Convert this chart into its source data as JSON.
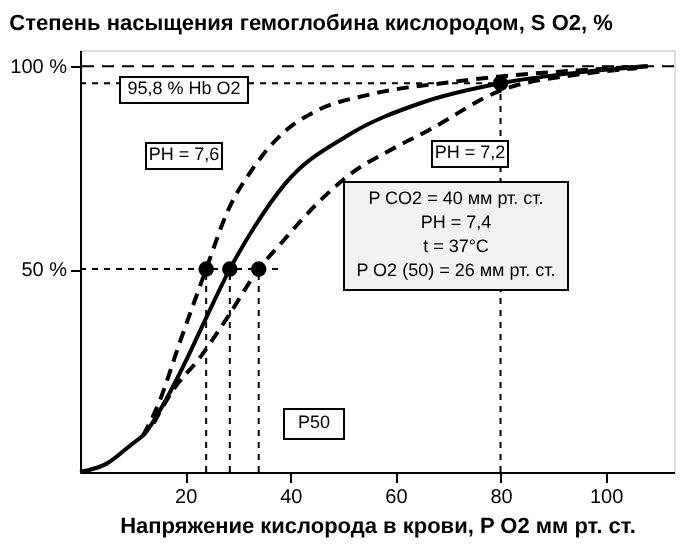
{
  "chart_data": {
    "type": "line",
    "title": "Степень насыщения гемоглобина кислородом, S O2, %",
    "xlabel": "Напряжение кислорода в крови, P O2  мм рт. ст.",
    "xlim": [
      0,
      113
    ],
    "ylim": [
      0,
      104
    ],
    "xticks": [
      20,
      40,
      60,
      80,
      100
    ],
    "yticks": [
      {
        "value": 50,
        "label": "50 %"
      },
      {
        "value": 100,
        "label": "100 %"
      }
    ],
    "grid": false,
    "series": [
      {
        "color": "#000000",
        "line_style": "dashed",
        "x": [
          12,
          15,
          19,
          24,
          28,
          33,
          39,
          45,
          55,
          70,
          80,
          95,
          108
        ],
        "values": [
          9,
          17,
          32,
          50,
          64,
          75,
          84,
          89,
          93,
          96,
          97.5,
          99,
          100
        ]
      },
      {
        "color": "#000000",
        "line_style": "solid",
        "x": [
          0,
          5,
          10,
          12,
          16,
          20,
          24,
          28.5,
          33,
          39,
          51,
          65,
          80,
          95,
          108
        ],
        "values": [
          0,
          2,
          7,
          9,
          17,
          27,
          38,
          50,
          60,
          71,
          83,
          91,
          95.8,
          98.5,
          100
        ]
      },
      {
        "color": "#000000",
        "line_style": "dashed",
        "x": [
          14,
          17.6,
          22.7,
          28,
          34,
          38,
          45,
          51,
          60,
          66,
          80,
          95,
          106
        ],
        "values": [
          12,
          20,
          28,
          38,
          50,
          56,
          66,
          73,
          80,
          84,
          94,
          98,
          99.5
        ]
      },
      {
        "type": "scatter",
        "color": "#000000",
        "marker": "circle",
        "x": [
          24,
          28.5,
          34,
          80
        ],
        "values": [
          50,
          50,
          50,
          95.8
        ]
      },
      {
        "color": "#000000",
        "line_style": "dotted",
        "x": [
          0,
          38
        ],
        "values": [
          50,
          50
        ]
      },
      {
        "color": "#000000",
        "line_style": "dotted",
        "x": [
          24,
          24
        ],
        "values": [
          0,
          50
        ]
      },
      {
        "color": "#000000",
        "line_style": "dotted",
        "x": [
          28.5,
          28.5
        ],
        "values": [
          0,
          50
        ]
      },
      {
        "color": "#000000",
        "line_style": "dotted",
        "x": [
          34,
          34
        ],
        "values": [
          0,
          50
        ]
      },
      {
        "color": "#000000",
        "line_style": "dotted",
        "x": [
          0,
          80
        ],
        "values": [
          95.8,
          95.8
        ]
      },
      {
        "color": "#000000",
        "line_style": "dotted",
        "x": [
          80,
          80
        ],
        "values": [
          0,
          95.8
        ]
      }
    ],
    "ref_lines": [
      {
        "axis": "y",
        "value": 100,
        "line_style": "dashed",
        "color": "#000000"
      }
    ],
    "annotations": [
      "95,8 % Hb O2",
      "PH = 7,6",
      "PH = 7,2",
      "P CO2 = 40 мм рт. ст.\nPH = 7,4\nt = 37°C\nP O2 (50) = 26 мм рт. ст.",
      "P50"
    ]
  }
}
